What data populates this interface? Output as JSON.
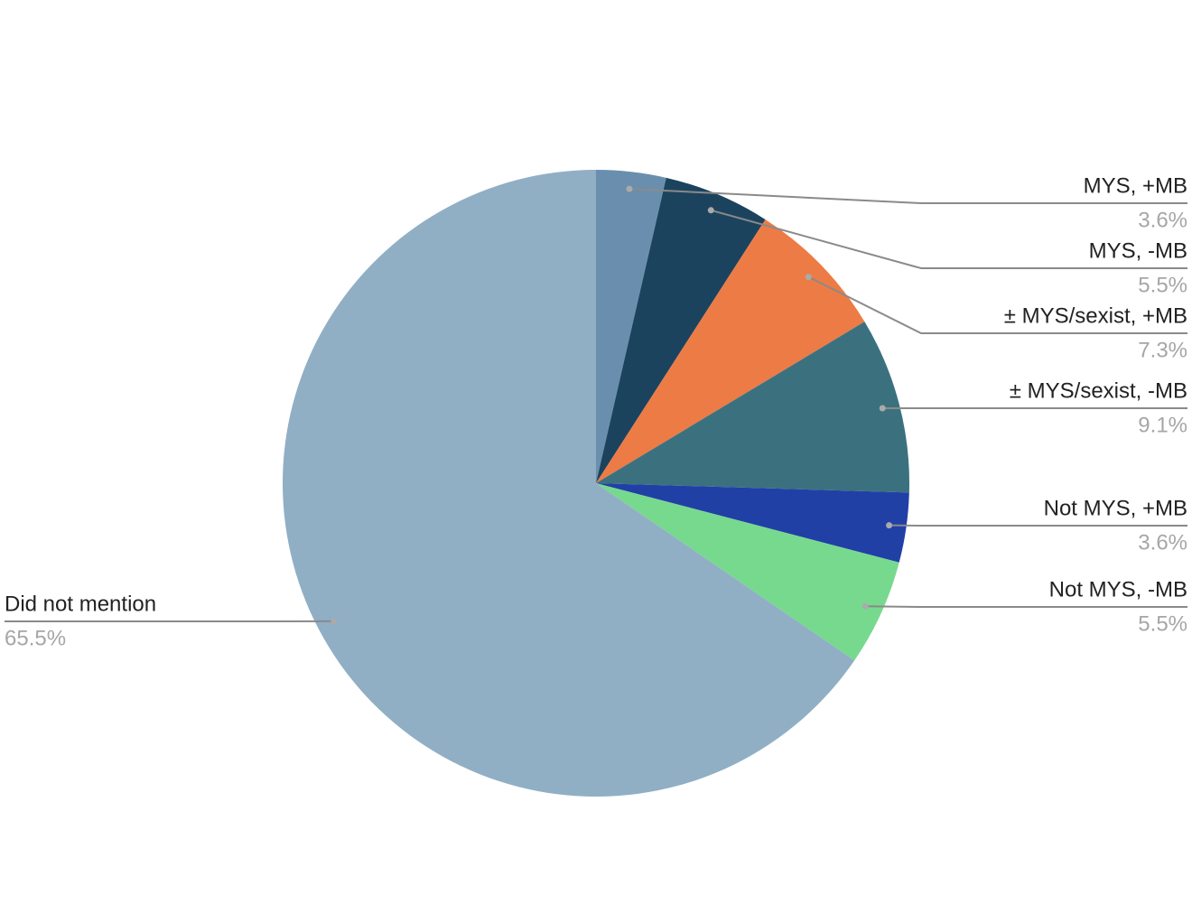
{
  "chart_data": {
    "type": "pie",
    "categories": [
      "MYS, +MB",
      "MYS, -MB",
      "± MYS/sexist, +MB",
      "± MYS/sexist, -MB",
      "Not MYS, +MB",
      "Not MYS, -MB",
      "Did not mention"
    ],
    "values": [
      3.6,
      5.5,
      7.3,
      9.1,
      3.6,
      5.5,
      65.5
    ],
    "value_labels": [
      "3.6%",
      "5.5%",
      "7.3%",
      "9.1%",
      "3.6%",
      "5.5%",
      "65.5%"
    ],
    "colors": [
      "#6a8fae",
      "#1c435e",
      "#ed7b45",
      "#3b717f",
      "#2140a6",
      "#77d98e",
      "#90afc5"
    ]
  }
}
